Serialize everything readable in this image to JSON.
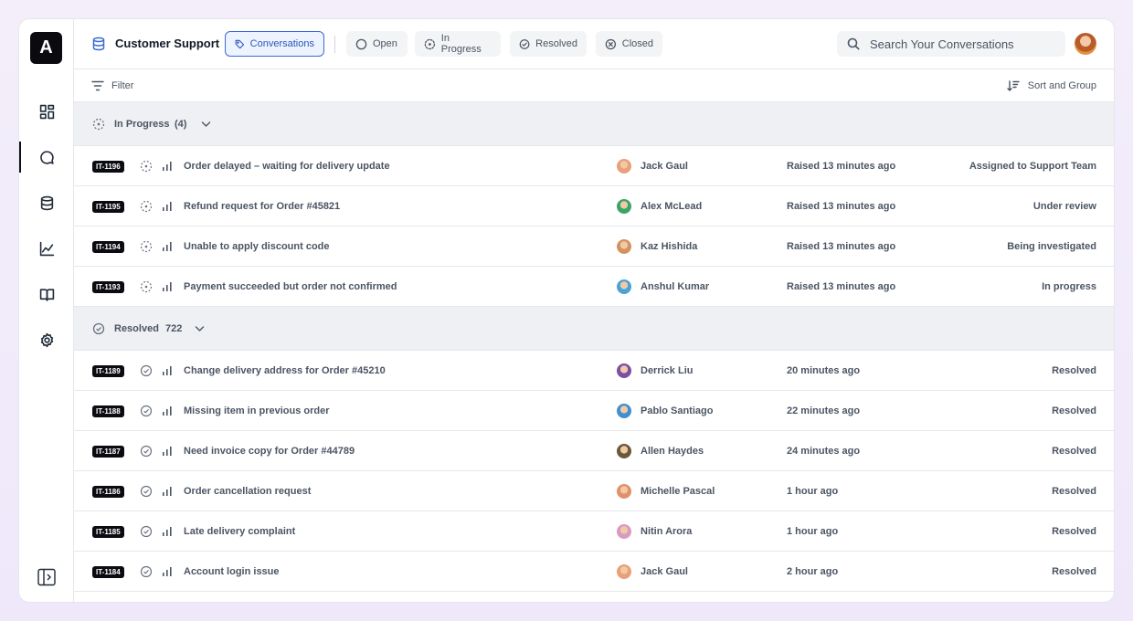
{
  "brand": {
    "logo_letter": "A"
  },
  "header": {
    "title": "Customer Support",
    "tabs": [
      {
        "label": "Conversations",
        "icon": "tag-icon",
        "active": true
      },
      {
        "label": "Open",
        "icon": "circle-icon"
      },
      {
        "label": "In Progress",
        "icon": "dashed-circle-icon"
      },
      {
        "label": "Resolved",
        "icon": "check-circle-icon"
      },
      {
        "label": "Closed",
        "icon": "x-circle-icon"
      }
    ],
    "search_placeholder": "Search Your Conversations"
  },
  "toolbar": {
    "filter_label": "Filter",
    "sort_label": "Sort and Group"
  },
  "groups": [
    {
      "label": "In Progress",
      "count": "(4)",
      "rows": [
        {
          "id": "IT-1196",
          "subject": "Order delayed – waiting for delivery update",
          "person": "Jack Gaul",
          "time": "Raised 13 minutes ago",
          "status": "Assigned to Support Team",
          "avatar_color": "#e8a07a"
        },
        {
          "id": "IT-1195",
          "subject": "Refund request for Order #45821",
          "person": "Alex McLead",
          "time": "Raised 13 minutes ago",
          "status": "Under review",
          "avatar_color": "#3aa56b"
        },
        {
          "id": "IT-1194",
          "subject": "Unable to apply discount code",
          "person": "Kaz Hishida",
          "time": "Raised 13 minutes ago",
          "status": "Being investigated",
          "avatar_color": "#d4935e"
        },
        {
          "id": "IT-1193",
          "subject": "Payment succeeded but order not confirmed",
          "person": "Anshul Kumar",
          "time": "Raised 13 minutes ago",
          "status": "In progress",
          "avatar_color": "#4aa3d8"
        }
      ]
    },
    {
      "label": "Resolved",
      "count": "722",
      "rows": [
        {
          "id": "IT-1189",
          "subject": "Change delivery address for Order #45210",
          "person": "Derrick Liu",
          "time": "20 minutes ago",
          "status": "Resolved",
          "avatar_color": "#7b4fa6"
        },
        {
          "id": "IT-1188",
          "subject": "Missing item in previous order",
          "person": "Pablo Santiago",
          "time": "22 minutes ago",
          "status": "Resolved",
          "avatar_color": "#3f8fd1"
        },
        {
          "id": "IT-1187",
          "subject": "Need invoice copy for Order #44789",
          "person": "Allen Haydes",
          "time": "24 minutes ago",
          "status": "Resolved",
          "avatar_color": "#6b5a3a"
        },
        {
          "id": "IT-1186",
          "subject": "Order cancellation request",
          "person": "Michelle Pascal",
          "time": "1 hour ago",
          "status": "Resolved",
          "avatar_color": "#e0906a"
        },
        {
          "id": "IT-1185",
          "subject": "Late delivery complaint",
          "person": "Nitin Arora",
          "time": "1 hour ago",
          "status": "Resolved",
          "avatar_color": "#d89bc0"
        },
        {
          "id": "IT-1184",
          "subject": "Account login issue",
          "person": "Jack Gaul",
          "time": "2 hour ago",
          "status": "Resolved",
          "avatar_color": "#e8a07a"
        }
      ]
    }
  ],
  "sidebar": {
    "items": [
      {
        "icon": "dashboard-icon"
      },
      {
        "icon": "chat-icon",
        "active": true
      },
      {
        "icon": "database-icon"
      },
      {
        "icon": "chart-icon"
      },
      {
        "icon": "book-icon"
      },
      {
        "icon": "gear-icon"
      }
    ]
  }
}
